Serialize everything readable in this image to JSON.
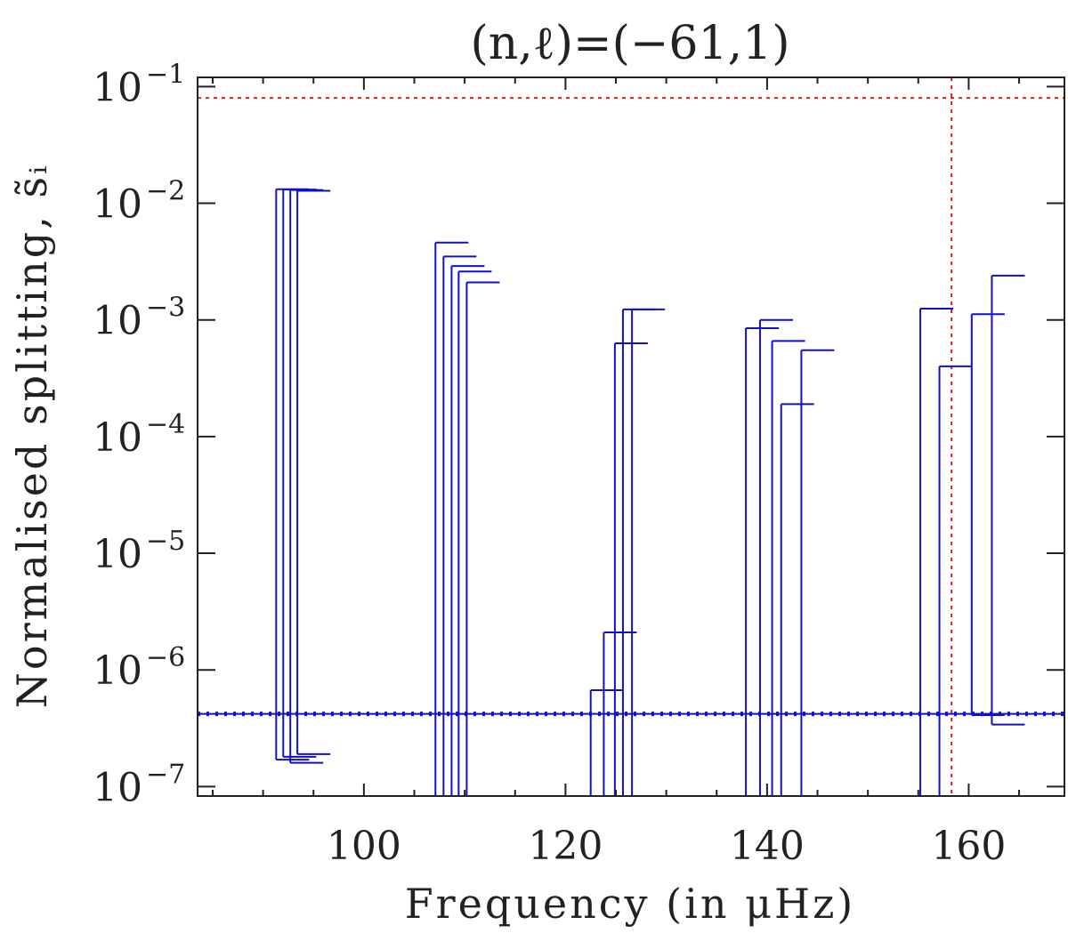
{
  "chart_data": {
    "type": "errorbar",
    "title": "(n,ℓ)=(−61,1)",
    "xlabel": "Frequency (in μHz)",
    "ylabel": "Normalised splitting, s̃ᵢ",
    "xlim": [
      83.5,
      169.5
    ],
    "ylim": [
      8.3e-08,
      0.12
    ],
    "y_scale": "log",
    "x_ticks": [
      100,
      120,
      140,
      160
    ],
    "y_ticks": [
      {
        "value": 1e-07,
        "base": "10",
        "exp": "−7"
      },
      {
        "value": 1e-06,
        "base": "10",
        "exp": "−6"
      },
      {
        "value": 1e-05,
        "base": "10",
        "exp": "−5"
      },
      {
        "value": 0.0001,
        "base": "10",
        "exp": "−4"
      },
      {
        "value": 0.001,
        "base": "10",
        "exp": "−3"
      },
      {
        "value": 0.01,
        "base": "10",
        "exp": "−2"
      },
      {
        "value": 0.1,
        "base": "10",
        "exp": "−1"
      }
    ],
    "grid": false,
    "colors": {
      "bars": "#1010cc",
      "reference": "#e01818",
      "axes": "#222222"
    },
    "reference_lines": {
      "horizontal_red": 0.08,
      "vertical_red": 158.3,
      "horizontal_blue": 4.2e-07
    },
    "errorbars": [
      {
        "x": 91.3,
        "low": 1.7e-07,
        "high": 0.0132
      },
      {
        "x": 92.0,
        "low": 1.8e-07,
        "high": 0.0131
      },
      {
        "x": 92.7,
        "low": 1.6e-07,
        "high": 0.013
      },
      {
        "x": 93.4,
        "low": 1.9e-07,
        "high": 0.0128
      },
      {
        "x": 107.1,
        "low": 8e-08,
        "high": 0.0046
      },
      {
        "x": 107.9,
        "low": 8e-08,
        "high": 0.0035
      },
      {
        "x": 108.7,
        "low": 8e-08,
        "high": 0.0029
      },
      {
        "x": 109.4,
        "low": 8e-08,
        "high": 0.0026
      },
      {
        "x": 110.2,
        "low": 8e-08,
        "high": 0.0021
      },
      {
        "x": 122.5,
        "low": 8e-08,
        "high": 6.7e-07
      },
      {
        "x": 123.8,
        "low": 8e-08,
        "high": 2.1e-06
      },
      {
        "x": 124.9,
        "low": 8e-08,
        "high": 0.00063
      },
      {
        "x": 125.7,
        "low": 8e-08,
        "high": 0.00123
      },
      {
        "x": 126.6,
        "low": 8e-08,
        "high": 0.00123
      },
      {
        "x": 137.9,
        "low": 8e-08,
        "high": 0.00085
      },
      {
        "x": 139.3,
        "low": 8e-08,
        "high": 0.001
      },
      {
        "x": 140.5,
        "low": 8e-08,
        "high": 0.00066
      },
      {
        "x": 141.4,
        "low": 8e-08,
        "high": 0.00019
      },
      {
        "x": 143.4,
        "low": 8e-08,
        "high": 0.00055
      },
      {
        "x": 155.2,
        "low": 8e-08,
        "high": 0.00125
      },
      {
        "x": 157.1,
        "low": 8e-08,
        "high": 0.0004
      },
      {
        "x": 160.3,
        "low": 4.1e-07,
        "high": 0.00112
      },
      {
        "x": 162.3,
        "low": 3.4e-07,
        "high": 0.0024
      }
    ]
  }
}
